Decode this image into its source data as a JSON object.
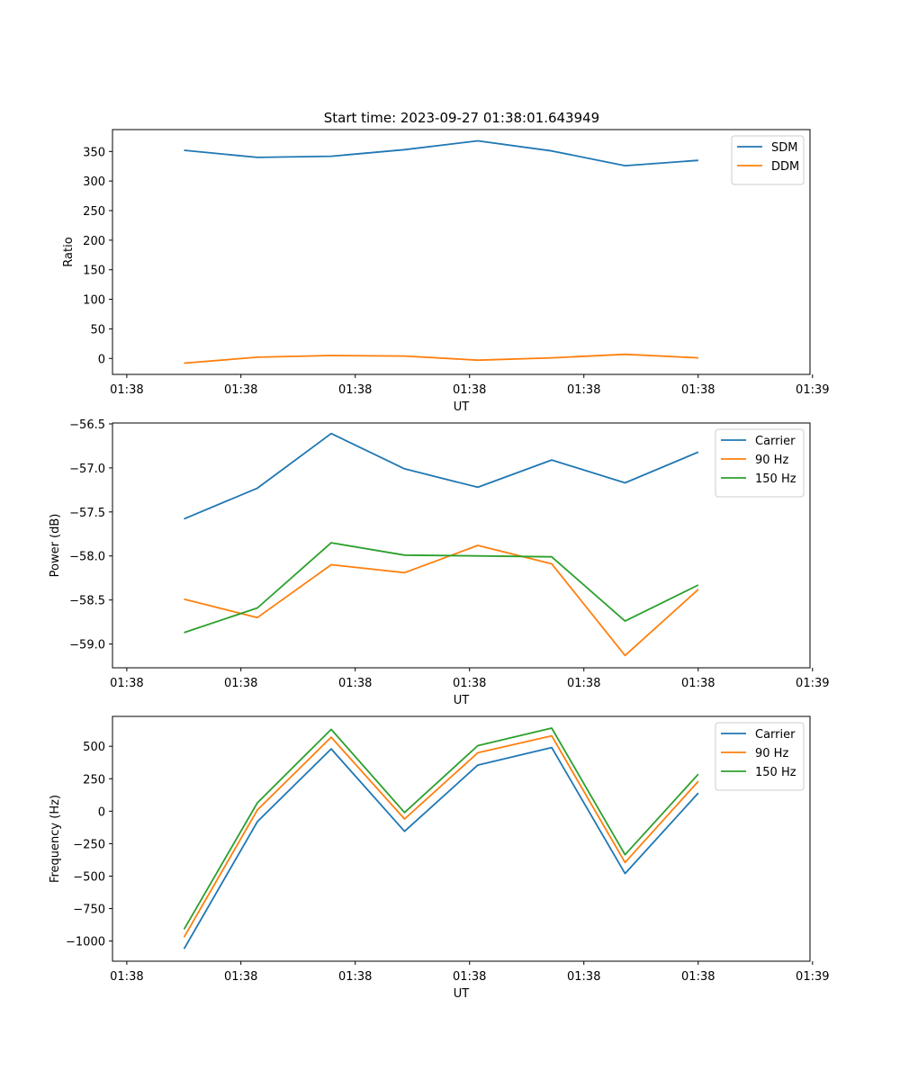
{
  "figure": {
    "title": "Start time: 2023-09-27 01:38:01.643949"
  },
  "chart_data": [
    {
      "type": "line",
      "title": "Start time: 2023-09-27 01:38:01.643949",
      "xlabel": "UT",
      "ylabel": "Ratio",
      "xlim": [
        0,
        1
      ],
      "ylim": [
        -27,
        387
      ],
      "x": [
        0.1026,
        0.2077,
        0.3136,
        0.4187,
        0.5238,
        0.6297,
        0.7348,
        0.8399
      ],
      "xticks": [
        {
          "x": 0.0205,
          "label": "01:38"
        },
        {
          "x": 0.1841,
          "label": "01:38"
        },
        {
          "x": 0.348,
          "label": "01:38"
        },
        {
          "x": 0.5119,
          "label": "01:38"
        },
        {
          "x": 0.6758,
          "label": "01:38"
        },
        {
          "x": 0.8397,
          "label": "01:38"
        },
        {
          "x": 1.0036,
          "label": "01:39"
        }
      ],
      "yticks": [
        {
          "v": 0,
          "label": "0"
        },
        {
          "v": 50,
          "label": "50"
        },
        {
          "v": 100,
          "label": "100"
        },
        {
          "v": 150,
          "label": "150"
        },
        {
          "v": 200,
          "label": "200"
        },
        {
          "v": 250,
          "label": "250"
        },
        {
          "v": 300,
          "label": "300"
        },
        {
          "v": 350,
          "label": "350"
        }
      ],
      "legend": "top-right",
      "series": [
        {
          "name": "SDM",
          "color": "#1f77b4",
          "values": [
            352,
            340,
            342,
            353,
            368,
            351,
            326,
            335
          ]
        },
        {
          "name": "DDM",
          "color": "#ff7f0e",
          "values": [
            -8,
            2,
            5,
            4,
            -3,
            1,
            7,
            1
          ]
        }
      ]
    },
    {
      "type": "line",
      "xlabel": "UT",
      "ylabel": "Power (dB)",
      "xlim": [
        0,
        1
      ],
      "ylim": [
        -59.27,
        -56.49
      ],
      "x": [
        0.1026,
        0.2077,
        0.3136,
        0.4187,
        0.5238,
        0.6297,
        0.7348,
        0.8399
      ],
      "xticks": [
        {
          "x": 0.0205,
          "label": "01:38"
        },
        {
          "x": 0.1841,
          "label": "01:38"
        },
        {
          "x": 0.348,
          "label": "01:38"
        },
        {
          "x": 0.5119,
          "label": "01:38"
        },
        {
          "x": 0.6758,
          "label": "01:38"
        },
        {
          "x": 0.8397,
          "label": "01:38"
        },
        {
          "x": 1.0036,
          "label": "01:39"
        }
      ],
      "yticks": [
        {
          "v": -59.0,
          "label": "−59.0"
        },
        {
          "v": -58.5,
          "label": "−58.5"
        },
        {
          "v": -58.0,
          "label": "−58.0"
        },
        {
          "v": -57.5,
          "label": "−57.5"
        },
        {
          "v": -57.0,
          "label": "−57.0"
        },
        {
          "v": -56.5,
          "label": "−56.5"
        }
      ],
      "legend": "top-right",
      "series": [
        {
          "name": "Carrier",
          "color": "#1f77b4",
          "values": [
            -57.58,
            -57.23,
            -56.61,
            -57.01,
            -57.22,
            -56.91,
            -57.17,
            -56.82
          ]
        },
        {
          "name": "90 Hz",
          "color": "#ff7f0e",
          "values": [
            -58.49,
            -58.7,
            -58.1,
            -58.19,
            -57.88,
            -58.09,
            -59.13,
            -58.38
          ]
        },
        {
          "name": "150 Hz",
          "color": "#2ca02c",
          "values": [
            -58.87,
            -58.59,
            -57.85,
            -57.99,
            -58.0,
            -58.01,
            -58.74,
            -58.33
          ]
        }
      ]
    },
    {
      "type": "line",
      "xlabel": "UT",
      "ylabel": "Frequency (Hz)",
      "xlim": [
        0,
        1
      ],
      "ylim": [
        -1155,
        730
      ],
      "x": [
        0.1026,
        0.2077,
        0.3136,
        0.4187,
        0.5238,
        0.6297,
        0.7348,
        0.8399
      ],
      "xticks": [
        {
          "x": 0.0205,
          "label": "01:38"
        },
        {
          "x": 0.1841,
          "label": "01:38"
        },
        {
          "x": 0.348,
          "label": "01:38"
        },
        {
          "x": 0.5119,
          "label": "01:38"
        },
        {
          "x": 0.6758,
          "label": "01:38"
        },
        {
          "x": 0.8397,
          "label": "01:38"
        },
        {
          "x": 1.0036,
          "label": "01:39"
        }
      ],
      "yticks": [
        {
          "v": -1000,
          "label": "−1000"
        },
        {
          "v": -750,
          "label": "−750"
        },
        {
          "v": -500,
          "label": "−500"
        },
        {
          "v": -250,
          "label": "−250"
        },
        {
          "v": 0,
          "label": "0"
        },
        {
          "v": 250,
          "label": "250"
        },
        {
          "v": 500,
          "label": "500"
        }
      ],
      "legend": "top-right",
      "series": [
        {
          "name": "Carrier",
          "color": "#1f77b4",
          "values": [
            -1060,
            -80,
            480,
            -155,
            355,
            490,
            -480,
            140
          ]
        },
        {
          "name": "90 Hz",
          "color": "#ff7f0e",
          "values": [
            -970,
            10,
            570,
            -60,
            450,
            580,
            -395,
            230
          ]
        },
        {
          "name": "150 Hz",
          "color": "#2ca02c",
          "values": [
            -910,
            65,
            630,
            -10,
            505,
            640,
            -335,
            285
          ]
        }
      ]
    }
  ]
}
